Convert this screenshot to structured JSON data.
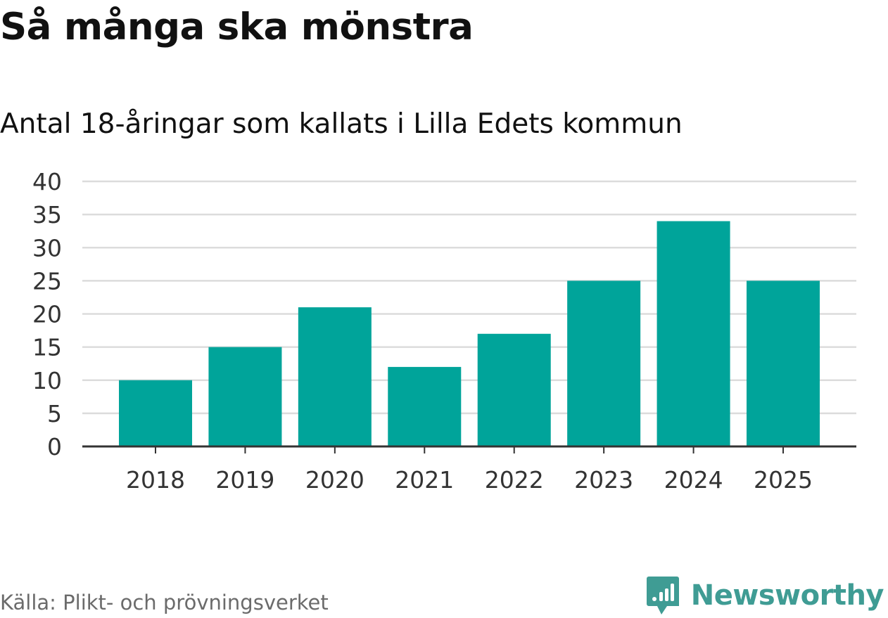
{
  "header": {
    "title": "Så många ska mönstra",
    "subtitle": "Antal 18-åringar som kallats i Lilla Edets kommun"
  },
  "footer": {
    "source": "Källa: Plikt- och prövningsverket",
    "brand": "Newsworthy"
  },
  "colors": {
    "bar": "#00a49a",
    "grid": "#dcdcdc",
    "axis": "#333333",
    "brand": "#3f9c94"
  },
  "chart_data": {
    "type": "bar",
    "title": "Så många ska mönstra",
    "subtitle": "Antal 18-åringar som kallats i Lilla Edets kommun",
    "categories": [
      "2018",
      "2019",
      "2020",
      "2021",
      "2022",
      "2023",
      "2024",
      "2025"
    ],
    "values": [
      10,
      15,
      21,
      12,
      17,
      25,
      34,
      25
    ],
    "xlabel": "",
    "ylabel": "",
    "ylim": [
      0,
      40
    ],
    "yticks": [
      0,
      5,
      10,
      15,
      20,
      25,
      30,
      35,
      40
    ],
    "grid": true,
    "legend": "none"
  }
}
